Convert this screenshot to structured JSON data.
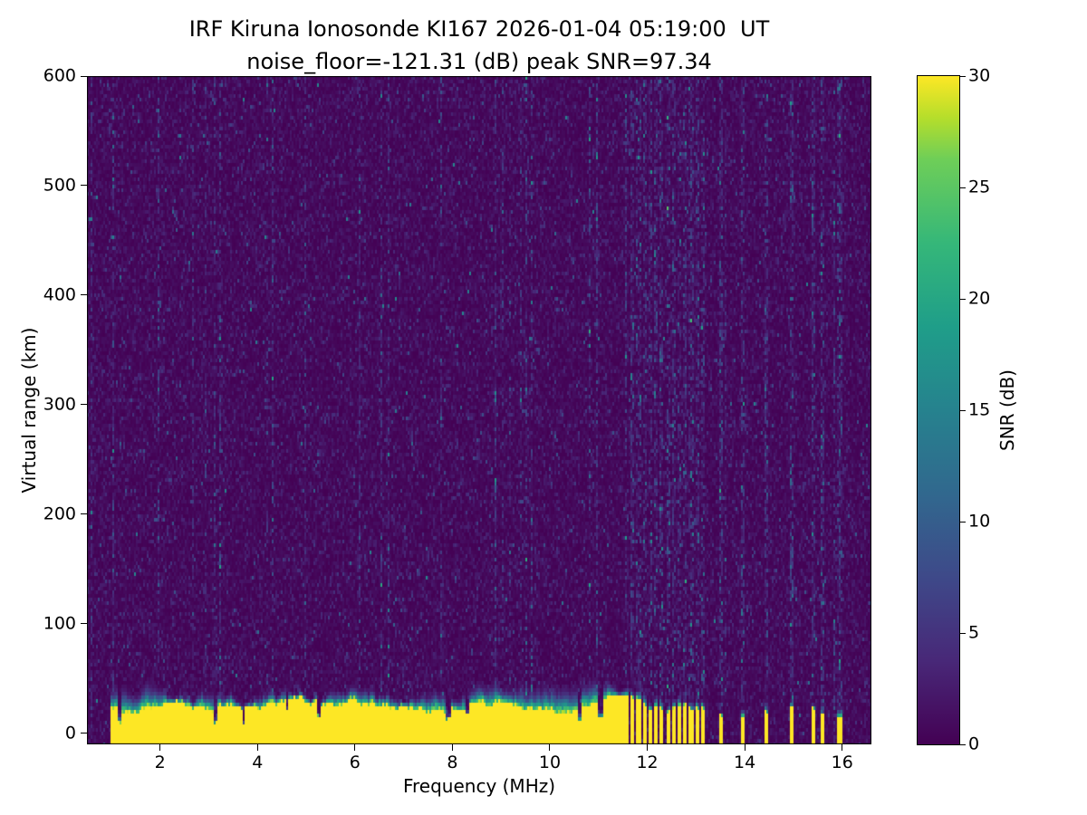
{
  "chart_data": {
    "type": "heatmap",
    "title": "IRF Kiruna Ionosonde KI167 2026-01-04 05:19:00  UT",
    "subtitle": "noise_floor=-121.31 (dB) peak SNR=97.34",
    "station": "IRF Kiruna Ionosonde KI167",
    "timestamp_ut": "2026-01-04 05:19:00",
    "noise_floor_db": -121.31,
    "peak_snr_db": 97.34,
    "xlabel": "Frequency (MHz)",
    "ylabel": "Virtual range (km)",
    "xlim": [
      0.5,
      16.6
    ],
    "ylim": [
      -10,
      600
    ],
    "xticks": [
      2,
      4,
      6,
      8,
      10,
      12,
      14,
      16
    ],
    "yticks": [
      0,
      100,
      200,
      300,
      400,
      500,
      600
    ],
    "grid": false,
    "colorbar": {
      "label": "SNR (dB)",
      "min": 0,
      "max": 30,
      "ticks": [
        0,
        5,
        10,
        15,
        20,
        25,
        30
      ],
      "colormap": "viridis",
      "stops": [
        {
          "t": 0.0,
          "color": "#440154"
        },
        {
          "t": 0.125,
          "color": "#482878"
        },
        {
          "t": 0.25,
          "color": "#3e4989"
        },
        {
          "t": 0.375,
          "color": "#31688e"
        },
        {
          "t": 0.5,
          "color": "#26828e"
        },
        {
          "t": 0.625,
          "color": "#1f9e89"
        },
        {
          "t": 0.75,
          "color": "#35b779"
        },
        {
          "t": 0.875,
          "color": "#6ece58"
        },
        {
          "t": 0.9375,
          "color": "#b5de2b"
        },
        {
          "t": 1.0,
          "color": "#fde725"
        }
      ]
    },
    "features": {
      "description": "Dark viridis background of low-level noise speckle (~0-3 dB) with a saturated ~30 dB ground-return band hugging 0-30 km virtual range; band is continuous from 1.0 to 11.6 MHz with occasional dark notches, then breaks into narrow intermittent vertical stripes up to ~16 MHz; faint full-height vertical noise streaks appear at stripe frequencies.",
      "background_noise_db": [
        0,
        3
      ],
      "echo_band": {
        "freq_range_mhz": [
          1.0,
          11.6
        ],
        "top_km_range": [
          19,
          34
        ],
        "snr_db": 30,
        "transition_km": [
          5,
          26
        ]
      },
      "stripes_dense_range_mhz": [
        11.6,
        13.2
      ],
      "stripe_freqs_mhz": [
        11.7,
        11.82,
        11.94,
        12.06,
        12.18,
        12.3,
        12.42,
        12.54,
        12.66,
        12.78,
        12.9,
        13.02,
        13.14,
        13.5,
        13.95,
        14.45,
        14.95,
        15.4,
        15.6,
        15.95
      ]
    }
  }
}
